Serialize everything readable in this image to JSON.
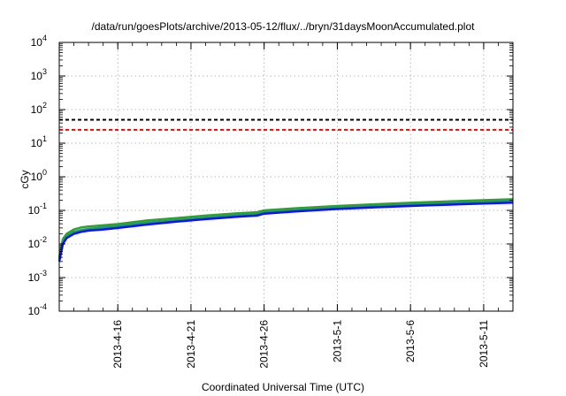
{
  "chart_data": {
    "type": "line",
    "title": "/data/run/goesPlots/archive/2013-05-12/flux/../bryn/31daysMoonAccumulated.plot",
    "xlabel": "Coordinated Universal Time (UTC)",
    "ylabel": "cGy",
    "y_scale": "log",
    "ylim": [
      0.0001,
      10000
    ],
    "xlim": [
      "2013-04-12",
      "2013-05-13"
    ],
    "grid": true,
    "y_ticks": [
      {
        "value": 0.0001,
        "base": "10",
        "exp": "-4"
      },
      {
        "value": 0.001,
        "base": "10",
        "exp": "-3"
      },
      {
        "value": 0.01,
        "base": "10",
        "exp": "-2"
      },
      {
        "value": 0.1,
        "base": "10",
        "exp": "-1"
      },
      {
        "value": 1,
        "base": "10",
        "exp": "0"
      },
      {
        "value": 10,
        "base": "10",
        "exp": "1"
      },
      {
        "value": 100,
        "base": "10",
        "exp": "2"
      },
      {
        "value": 1000,
        "base": "10",
        "exp": "3"
      },
      {
        "value": 10000,
        "base": "10",
        "exp": "4"
      }
    ],
    "x_ticks": [
      "2013-4-16",
      "2013-4-21",
      "2013-4-26",
      "2013-5-1",
      "2013-5-6",
      "2013-5-11"
    ],
    "x_tick_dates": [
      "2013-04-16",
      "2013-04-21",
      "2013-04-26",
      "2013-05-01",
      "2013-05-06",
      "2013-05-11"
    ],
    "hlines": [
      {
        "value": 50,
        "color": "#000000",
        "style": "dashed"
      },
      {
        "value": 25,
        "color": "#ff0000",
        "style": "dashed"
      }
    ],
    "series": [
      {
        "color": "#22aa22",
        "x": [
          "2013-04-12T00:00",
          "2013-04-12T06:00",
          "2013-04-12T12:00",
          "2013-04-13T00:00",
          "2013-04-13T12:00",
          "2013-04-14T00:00",
          "2013-04-15T00:00",
          "2013-04-16T00:00",
          "2013-04-18T00:00",
          "2013-04-20T00:00",
          "2013-04-22T00:00",
          "2013-04-24T00:00",
          "2013-04-25T12:00",
          "2013-04-26T00:00",
          "2013-04-28T00:00",
          "2013-05-01T00:00",
          "2013-05-04T00:00",
          "2013-05-07T00:00",
          "2013-05-10T00:00",
          "2013-05-13T00:00"
        ],
        "values": [
          0.004,
          0.014,
          0.02,
          0.027,
          0.031,
          0.033,
          0.036,
          0.039,
          0.05,
          0.059,
          0.07,
          0.081,
          0.088,
          0.1,
          0.115,
          0.135,
          0.155,
          0.175,
          0.195,
          0.215
        ]
      },
      {
        "color": "#2a8a9a",
        "x": [
          "2013-04-12T00:00",
          "2013-04-12T06:00",
          "2013-04-12T12:00",
          "2013-04-13T00:00",
          "2013-04-13T12:00",
          "2013-04-14T00:00",
          "2013-04-15T00:00",
          "2013-04-16T00:00",
          "2013-04-18T00:00",
          "2013-04-20T00:00",
          "2013-04-22T00:00",
          "2013-04-24T00:00",
          "2013-04-25T12:00",
          "2013-04-26T00:00",
          "2013-04-28T00:00",
          "2013-05-01T00:00",
          "2013-05-04T00:00",
          "2013-05-07T00:00",
          "2013-05-10T00:00",
          "2013-05-13T00:00"
        ],
        "values": [
          0.0035,
          0.012,
          0.017,
          0.023,
          0.026,
          0.028,
          0.031,
          0.034,
          0.043,
          0.051,
          0.061,
          0.071,
          0.077,
          0.088,
          0.1,
          0.12,
          0.137,
          0.155,
          0.172,
          0.19
        ]
      },
      {
        "color": "#1010ee",
        "x": [
          "2013-04-12T00:00",
          "2013-04-12T06:00",
          "2013-04-12T12:00",
          "2013-04-13T00:00",
          "2013-04-13T12:00",
          "2013-04-14T00:00",
          "2013-04-15T00:00",
          "2013-04-16T00:00",
          "2013-04-18T00:00",
          "2013-04-20T00:00",
          "2013-04-22T00:00",
          "2013-04-24T00:00",
          "2013-04-25T12:00",
          "2013-04-26T00:00",
          "2013-04-28T00:00",
          "2013-05-01T00:00",
          "2013-05-04T00:00",
          "2013-05-07T00:00",
          "2013-05-10T00:00",
          "2013-05-13T00:00"
        ],
        "values": [
          0.003,
          0.01,
          0.015,
          0.02,
          0.023,
          0.025,
          0.027,
          0.03,
          0.038,
          0.046,
          0.055,
          0.064,
          0.07,
          0.08,
          0.092,
          0.11,
          0.125,
          0.14,
          0.155,
          0.17
        ]
      }
    ]
  }
}
